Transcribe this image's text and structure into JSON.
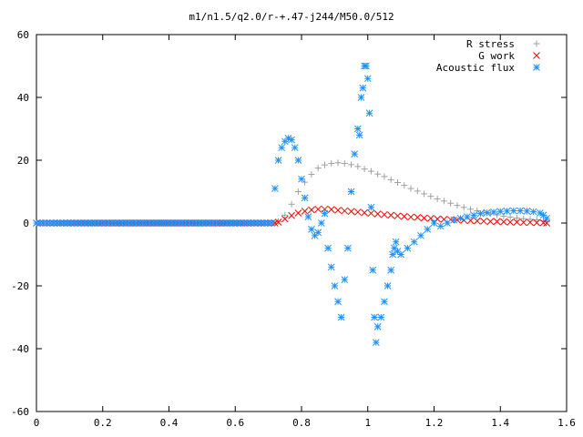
{
  "chart_data": {
    "type": "scatter",
    "title": "m1/n1.5/q2.0/r-+.47-j244/M50.0/512",
    "xlabel": "",
    "ylabel": "",
    "xlim": [
      0,
      1.6
    ],
    "ylim": [
      -60,
      60
    ],
    "xticks": [
      "0",
      "0.2",
      "0.4",
      "0.6",
      "0.8",
      "1",
      "1.2",
      "1.4",
      "1.6"
    ],
    "yticks": [
      "60",
      "40",
      "20",
      "0",
      "-20",
      "-40",
      "-60"
    ],
    "legend_position": "top-right",
    "series": [
      {
        "name": "R stress",
        "marker": "plus",
        "color": "#a0a0a0",
        "x": [
          0.73,
          0.75,
          0.77,
          0.79,
          0.81,
          0.83,
          0.85,
          0.87,
          0.89,
          0.91,
          0.93,
          0.95,
          0.97,
          0.99,
          1.01,
          1.03,
          1.05,
          1.07,
          1.09,
          1.11,
          1.13,
          1.15,
          1.17,
          1.19,
          1.21,
          1.23,
          1.25,
          1.27,
          1.29,
          1.31,
          1.33,
          1.35,
          1.37,
          1.39,
          1.41,
          1.43,
          1.45,
          1.47,
          1.49,
          1.51,
          1.53,
          1.54
        ],
        "y": [
          0.5,
          2.5,
          6,
          10,
          13,
          15.5,
          17.5,
          18.5,
          19,
          19.2,
          19,
          18.6,
          18,
          17.2,
          16.5,
          15.6,
          14.8,
          13.8,
          12.9,
          12,
          11,
          10.2,
          9.3,
          8.5,
          7.7,
          7,
          6.3,
          5.6,
          5,
          4.4,
          3.9,
          3.4,
          3,
          2.6,
          2.2,
          1.9,
          1.6,
          1.4,
          1.2,
          1,
          0.7,
          0.5
        ]
      },
      {
        "name": "G work",
        "marker": "cross",
        "color": "#ff0000",
        "x": [
          0.73,
          0.75,
          0.77,
          0.79,
          0.81,
          0.83,
          0.85,
          0.87,
          0.89,
          0.91,
          0.93,
          0.95,
          0.97,
          0.99,
          1.01,
          1.03,
          1.05,
          1.07,
          1.09,
          1.11,
          1.13,
          1.15,
          1.17,
          1.19,
          1.21,
          1.23,
          1.25,
          1.27,
          1.29,
          1.31,
          1.33,
          1.35,
          1.37,
          1.39,
          1.41,
          1.43,
          1.45,
          1.47,
          1.49,
          1.51,
          1.53,
          1.54
        ],
        "y": [
          0.3,
          1.3,
          2.4,
          3.2,
          3.8,
          4.2,
          4.4,
          4.4,
          4.3,
          4.1,
          3.9,
          3.7,
          3.5,
          3.3,
          3.1,
          2.9,
          2.7,
          2.5,
          2.3,
          2.1,
          1.9,
          1.8,
          1.6,
          1.5,
          1.3,
          1.2,
          1.1,
          1,
          0.9,
          0.8,
          0.7,
          0.6,
          0.5,
          0.5,
          0.4,
          0.3,
          0.3,
          0.2,
          0.2,
          0.1,
          0.1,
          0
        ]
      },
      {
        "name": "Acoustic flux",
        "marker": "star",
        "color": "#1e90ff",
        "x": [
          0.72,
          0.73,
          0.74,
          0.75,
          0.76,
          0.77,
          0.78,
          0.79,
          0.8,
          0.81,
          0.82,
          0.83,
          0.84,
          0.85,
          0.86,
          0.87,
          0.88,
          0.89,
          0.9,
          0.91,
          0.92,
          0.93,
          0.94,
          0.95,
          0.96,
          0.97,
          0.975,
          0.98,
          0.985,
          0.99,
          0.995,
          1.0,
          1.005,
          1.01,
          1.015,
          1.02,
          1.025,
          1.03,
          1.04,
          1.05,
          1.06,
          1.07,
          1.075,
          1.08,
          1.085,
          1.09,
          1.1,
          1.12,
          1.14,
          1.16,
          1.18,
          1.2,
          1.22,
          1.24,
          1.26,
          1.28,
          1.3,
          1.32,
          1.34,
          1.36,
          1.38,
          1.4,
          1.42,
          1.44,
          1.46,
          1.48,
          1.5,
          1.52,
          1.53,
          1.54
        ],
        "y": [
          11,
          20,
          24,
          26,
          27,
          26.5,
          24,
          20,
          14,
          8,
          2,
          -2,
          -4,
          -3,
          0,
          3,
          -8,
          -14,
          -20,
          -25,
          -30,
          -18,
          -8,
          10,
          22,
          30,
          28,
          40,
          43,
          50,
          50,
          46,
          35,
          5,
          -15,
          -30,
          -38,
          -33,
          -30,
          -25,
          -20,
          -15,
          -10,
          -8,
          -6,
          -9,
          -10,
          -8,
          -6,
          -4,
          -2,
          0,
          -1,
          0,
          1,
          1.5,
          2,
          2.5,
          3,
          3.3,
          3.5,
          3.7,
          3.8,
          3.9,
          3.9,
          3.8,
          3.6,
          3.2,
          2.5,
          1.5
        ]
      }
    ]
  }
}
